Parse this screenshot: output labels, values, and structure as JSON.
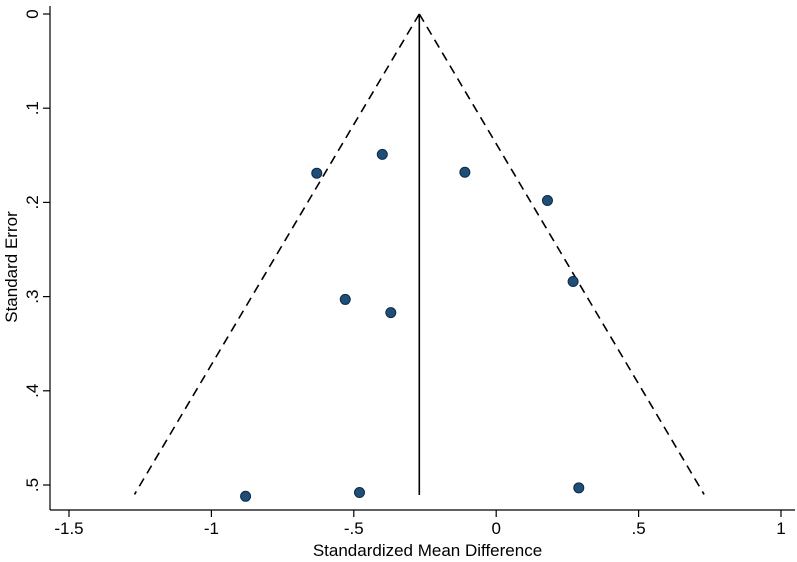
{
  "chart_data": {
    "type": "scatter",
    "subtype": "funnel-plot",
    "xlabel": "Standardized Mean Difference",
    "ylabel": "Standard Error",
    "xlim": [
      -1.55,
      1.05
    ],
    "ylim": [
      0,
      0.52
    ],
    "y_reversed": true,
    "x_ticks": [
      -1.5,
      -1,
      -0.5,
      0,
      0.5,
      1
    ],
    "x_tick_labels": [
      "-1.5",
      "-1",
      "-.5",
      "0",
      ".5",
      "1"
    ],
    "y_ticks": [
      0,
      0.1,
      0.2,
      0.3,
      0.4,
      0.5
    ],
    "y_tick_labels": [
      "0",
      ".1",
      ".2",
      ".3",
      ".4",
      ".5"
    ],
    "grid": false,
    "pooled_estimate": -0.27,
    "funnel_limits": {
      "apex": [
        -0.27,
        0
      ],
      "left_end": [
        -1.27,
        0.51
      ],
      "right_end": [
        0.73,
        0.51
      ]
    },
    "point_color": "#1f4e79",
    "points": [
      {
        "x": -0.4,
        "y": 0.149
      },
      {
        "x": -0.63,
        "y": 0.169
      },
      {
        "x": -0.11,
        "y": 0.168
      },
      {
        "x": 0.18,
        "y": 0.198
      },
      {
        "x": 0.27,
        "y": 0.284
      },
      {
        "x": -0.53,
        "y": 0.303
      },
      {
        "x": -0.37,
        "y": 0.317
      },
      {
        "x": -0.88,
        "y": 0.512
      },
      {
        "x": -0.48,
        "y": 0.508
      },
      {
        "x": 0.29,
        "y": 0.503
      }
    ]
  }
}
